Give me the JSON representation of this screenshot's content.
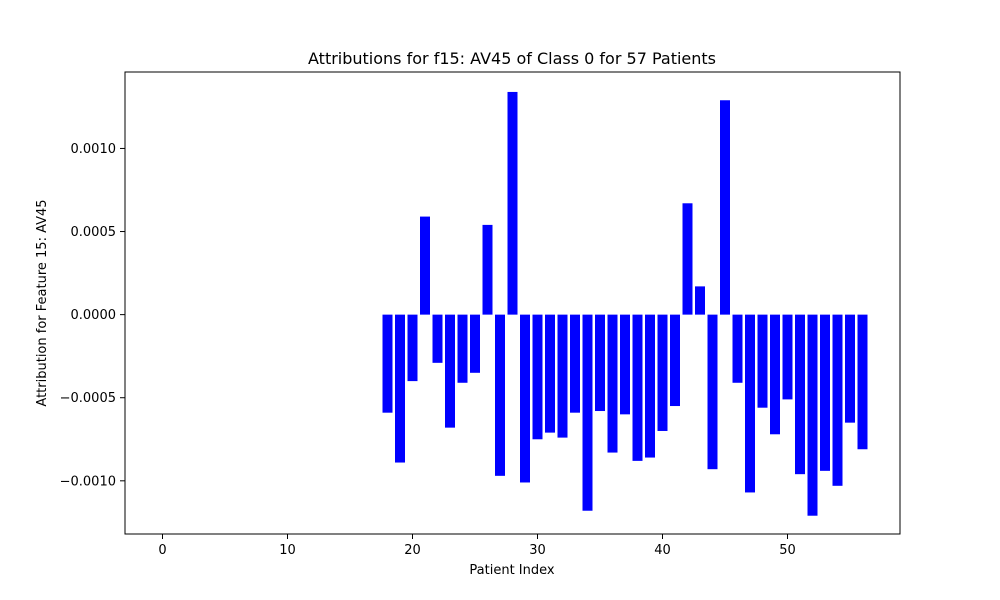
{
  "chart_data": {
    "type": "bar",
    "title": "Attributions for f15: AV45 of Class 0 for 57 Patients",
    "xlabel": "Patient Index",
    "ylabel": "Attribution for Feature 15: AV45",
    "bar_color": "#0000ff",
    "xlim": [
      -3,
      59
    ],
    "ylim": [
      -0.00132,
      0.00146
    ],
    "x_ticks": [
      0,
      10,
      20,
      30,
      40,
      50
    ],
    "y_ticks": [
      -0.001,
      -0.0005,
      0.0,
      0.0005,
      0.001
    ],
    "y_tick_labels": [
      "−0.0010",
      "−0.0005",
      "0.0000",
      "0.0005",
      "0.0010"
    ],
    "x": [
      18,
      19,
      20,
      21,
      22,
      23,
      24,
      25,
      26,
      27,
      28,
      29,
      30,
      31,
      32,
      33,
      34,
      35,
      36,
      37,
      38,
      39,
      40,
      41,
      42,
      43,
      44,
      45,
      46,
      47,
      48,
      49,
      50,
      51,
      52,
      53,
      54,
      55,
      56
    ],
    "values": [
      -0.00059,
      -0.00089,
      -0.0004,
      0.00059,
      -0.00029,
      -0.00068,
      -0.00041,
      -0.00035,
      0.00054,
      -0.00097,
      0.00134,
      -0.00101,
      -0.00075,
      -0.00071,
      -0.00074,
      -0.00059,
      -0.00118,
      -0.00058,
      -0.00083,
      -0.0006,
      -0.00088,
      -0.00086,
      -0.0007,
      -0.00055,
      0.00067,
      0.00017,
      -0.00093,
      0.00129,
      -0.00041,
      -0.00107,
      -0.00056,
      -0.00072,
      -0.00051,
      -0.00096,
      -0.00121,
      -0.00094,
      -0.00103,
      -0.00065,
      -0.00081
    ],
    "grid": false,
    "legend": "none"
  }
}
